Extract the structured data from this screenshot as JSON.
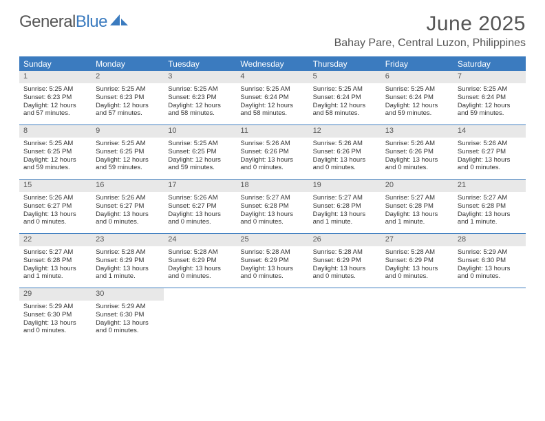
{
  "logo": {
    "text1": "General",
    "text2": "Blue"
  },
  "title": "June 2025",
  "location": "Bahay Pare, Central Luzon, Philippines",
  "colors": {
    "accent": "#3b7bbf",
    "day_num_bg": "#e8e8e8",
    "text": "#555555",
    "body_text": "#333333",
    "background": "#ffffff"
  },
  "day_names": [
    "Sunday",
    "Monday",
    "Tuesday",
    "Wednesday",
    "Thursday",
    "Friday",
    "Saturday"
  ],
  "weeks": [
    [
      {
        "num": "1",
        "sunrise": "Sunrise: 5:25 AM",
        "sunset": "Sunset: 6:23 PM",
        "daylight1": "Daylight: 12 hours",
        "daylight2": "and 57 minutes."
      },
      {
        "num": "2",
        "sunrise": "Sunrise: 5:25 AM",
        "sunset": "Sunset: 6:23 PM",
        "daylight1": "Daylight: 12 hours",
        "daylight2": "and 57 minutes."
      },
      {
        "num": "3",
        "sunrise": "Sunrise: 5:25 AM",
        "sunset": "Sunset: 6:23 PM",
        "daylight1": "Daylight: 12 hours",
        "daylight2": "and 58 minutes."
      },
      {
        "num": "4",
        "sunrise": "Sunrise: 5:25 AM",
        "sunset": "Sunset: 6:24 PM",
        "daylight1": "Daylight: 12 hours",
        "daylight2": "and 58 minutes."
      },
      {
        "num": "5",
        "sunrise": "Sunrise: 5:25 AM",
        "sunset": "Sunset: 6:24 PM",
        "daylight1": "Daylight: 12 hours",
        "daylight2": "and 58 minutes."
      },
      {
        "num": "6",
        "sunrise": "Sunrise: 5:25 AM",
        "sunset": "Sunset: 6:24 PM",
        "daylight1": "Daylight: 12 hours",
        "daylight2": "and 59 minutes."
      },
      {
        "num": "7",
        "sunrise": "Sunrise: 5:25 AM",
        "sunset": "Sunset: 6:24 PM",
        "daylight1": "Daylight: 12 hours",
        "daylight2": "and 59 minutes."
      }
    ],
    [
      {
        "num": "8",
        "sunrise": "Sunrise: 5:25 AM",
        "sunset": "Sunset: 6:25 PM",
        "daylight1": "Daylight: 12 hours",
        "daylight2": "and 59 minutes."
      },
      {
        "num": "9",
        "sunrise": "Sunrise: 5:25 AM",
        "sunset": "Sunset: 6:25 PM",
        "daylight1": "Daylight: 12 hours",
        "daylight2": "and 59 minutes."
      },
      {
        "num": "10",
        "sunrise": "Sunrise: 5:25 AM",
        "sunset": "Sunset: 6:25 PM",
        "daylight1": "Daylight: 12 hours",
        "daylight2": "and 59 minutes."
      },
      {
        "num": "11",
        "sunrise": "Sunrise: 5:26 AM",
        "sunset": "Sunset: 6:26 PM",
        "daylight1": "Daylight: 13 hours",
        "daylight2": "and 0 minutes."
      },
      {
        "num": "12",
        "sunrise": "Sunrise: 5:26 AM",
        "sunset": "Sunset: 6:26 PM",
        "daylight1": "Daylight: 13 hours",
        "daylight2": "and 0 minutes."
      },
      {
        "num": "13",
        "sunrise": "Sunrise: 5:26 AM",
        "sunset": "Sunset: 6:26 PM",
        "daylight1": "Daylight: 13 hours",
        "daylight2": "and 0 minutes."
      },
      {
        "num": "14",
        "sunrise": "Sunrise: 5:26 AM",
        "sunset": "Sunset: 6:27 PM",
        "daylight1": "Daylight: 13 hours",
        "daylight2": "and 0 minutes."
      }
    ],
    [
      {
        "num": "15",
        "sunrise": "Sunrise: 5:26 AM",
        "sunset": "Sunset: 6:27 PM",
        "daylight1": "Daylight: 13 hours",
        "daylight2": "and 0 minutes."
      },
      {
        "num": "16",
        "sunrise": "Sunrise: 5:26 AM",
        "sunset": "Sunset: 6:27 PM",
        "daylight1": "Daylight: 13 hours",
        "daylight2": "and 0 minutes."
      },
      {
        "num": "17",
        "sunrise": "Sunrise: 5:26 AM",
        "sunset": "Sunset: 6:27 PM",
        "daylight1": "Daylight: 13 hours",
        "daylight2": "and 0 minutes."
      },
      {
        "num": "18",
        "sunrise": "Sunrise: 5:27 AM",
        "sunset": "Sunset: 6:28 PM",
        "daylight1": "Daylight: 13 hours",
        "daylight2": "and 0 minutes."
      },
      {
        "num": "19",
        "sunrise": "Sunrise: 5:27 AM",
        "sunset": "Sunset: 6:28 PM",
        "daylight1": "Daylight: 13 hours",
        "daylight2": "and 1 minute."
      },
      {
        "num": "20",
        "sunrise": "Sunrise: 5:27 AM",
        "sunset": "Sunset: 6:28 PM",
        "daylight1": "Daylight: 13 hours",
        "daylight2": "and 1 minute."
      },
      {
        "num": "21",
        "sunrise": "Sunrise: 5:27 AM",
        "sunset": "Sunset: 6:28 PM",
        "daylight1": "Daylight: 13 hours",
        "daylight2": "and 1 minute."
      }
    ],
    [
      {
        "num": "22",
        "sunrise": "Sunrise: 5:27 AM",
        "sunset": "Sunset: 6:28 PM",
        "daylight1": "Daylight: 13 hours",
        "daylight2": "and 1 minute."
      },
      {
        "num": "23",
        "sunrise": "Sunrise: 5:28 AM",
        "sunset": "Sunset: 6:29 PM",
        "daylight1": "Daylight: 13 hours",
        "daylight2": "and 1 minute."
      },
      {
        "num": "24",
        "sunrise": "Sunrise: 5:28 AM",
        "sunset": "Sunset: 6:29 PM",
        "daylight1": "Daylight: 13 hours",
        "daylight2": "and 0 minutes."
      },
      {
        "num": "25",
        "sunrise": "Sunrise: 5:28 AM",
        "sunset": "Sunset: 6:29 PM",
        "daylight1": "Daylight: 13 hours",
        "daylight2": "and 0 minutes."
      },
      {
        "num": "26",
        "sunrise": "Sunrise: 5:28 AM",
        "sunset": "Sunset: 6:29 PM",
        "daylight1": "Daylight: 13 hours",
        "daylight2": "and 0 minutes."
      },
      {
        "num": "27",
        "sunrise": "Sunrise: 5:28 AM",
        "sunset": "Sunset: 6:29 PM",
        "daylight1": "Daylight: 13 hours",
        "daylight2": "and 0 minutes."
      },
      {
        "num": "28",
        "sunrise": "Sunrise: 5:29 AM",
        "sunset": "Sunset: 6:30 PM",
        "daylight1": "Daylight: 13 hours",
        "daylight2": "and 0 minutes."
      }
    ],
    [
      {
        "num": "29",
        "sunrise": "Sunrise: 5:29 AM",
        "sunset": "Sunset: 6:30 PM",
        "daylight1": "Daylight: 13 hours",
        "daylight2": "and 0 minutes."
      },
      {
        "num": "30",
        "sunrise": "Sunrise: 5:29 AM",
        "sunset": "Sunset: 6:30 PM",
        "daylight1": "Daylight: 13 hours",
        "daylight2": "and 0 minutes."
      },
      null,
      null,
      null,
      null,
      null
    ]
  ]
}
